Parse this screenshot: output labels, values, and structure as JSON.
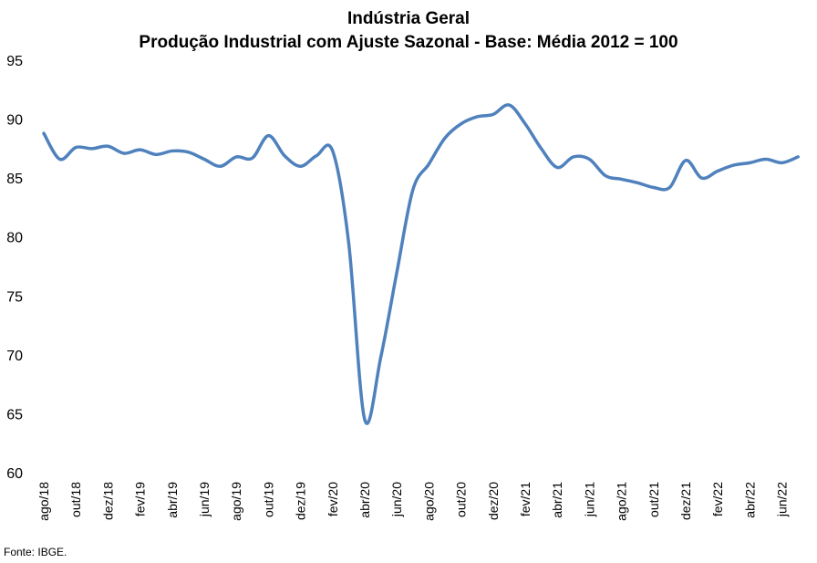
{
  "chart_data": {
    "type": "line",
    "title": "Indústria Geral",
    "subtitle": "Produção Industrial com Ajuste Sazonal - Base: Média 2012 = 100",
    "xlabel": "",
    "ylabel": "",
    "ylim": [
      60,
      95
    ],
    "yticks": [
      60,
      65,
      70,
      75,
      80,
      85,
      90,
      95
    ],
    "grid": false,
    "legend": "none",
    "line_color": "#4F81BD",
    "x": [
      "ago/18",
      "set/18",
      "out/18",
      "nov/18",
      "dez/18",
      "jan/19",
      "fev/19",
      "mar/19",
      "abr/19",
      "mai/19",
      "jun/19",
      "jul/19",
      "ago/19",
      "set/19",
      "out/19",
      "nov/19",
      "dez/19",
      "jan/20",
      "fev/20",
      "mar/20",
      "abr/20",
      "mai/20",
      "jun/20",
      "jul/20",
      "ago/20",
      "set/20",
      "out/20",
      "nov/20",
      "dez/20",
      "jan/21",
      "fev/21",
      "mar/21",
      "abr/21",
      "mai/21",
      "jun/21",
      "jul/21",
      "ago/21",
      "set/21",
      "out/21",
      "nov/21",
      "dez/21",
      "jan/22",
      "fev/22",
      "mar/22",
      "abr/22",
      "mai/22",
      "jun/22",
      "jul/22"
    ],
    "xtick_labels": [
      "ago/18",
      "out/18",
      "dez/18",
      "fev/19",
      "abr/19",
      "jun/19",
      "ago/19",
      "out/19",
      "dez/19",
      "fev/20",
      "abr/20",
      "jun/20",
      "ago/20",
      "out/20",
      "dez/20",
      "fev/21",
      "abr/21",
      "jun/21",
      "ago/21",
      "out/21",
      "dez/21",
      "fev/22",
      "abr/22",
      "jun/22"
    ],
    "series": [
      {
        "values": [
          88.8,
          86.6,
          87.6,
          87.5,
          87.7,
          87.1,
          87.4,
          87.0,
          87.3,
          87.2,
          86.6,
          86.0,
          86.8,
          86.7,
          88.6,
          86.9,
          86.0,
          86.9,
          87.3,
          79.5,
          64.5,
          69.8,
          77.0,
          84.0,
          86.2,
          88.4,
          89.6,
          90.2,
          90.4,
          91.2,
          89.6,
          87.5,
          85.9,
          86.8,
          86.6,
          85.2,
          84.9,
          84.6,
          84.2,
          84.2,
          86.5,
          85.0,
          85.6,
          86.1,
          86.3,
          86.6,
          86.3,
          86.8
        ]
      }
    ],
    "source": "Fonte: IBGE."
  }
}
